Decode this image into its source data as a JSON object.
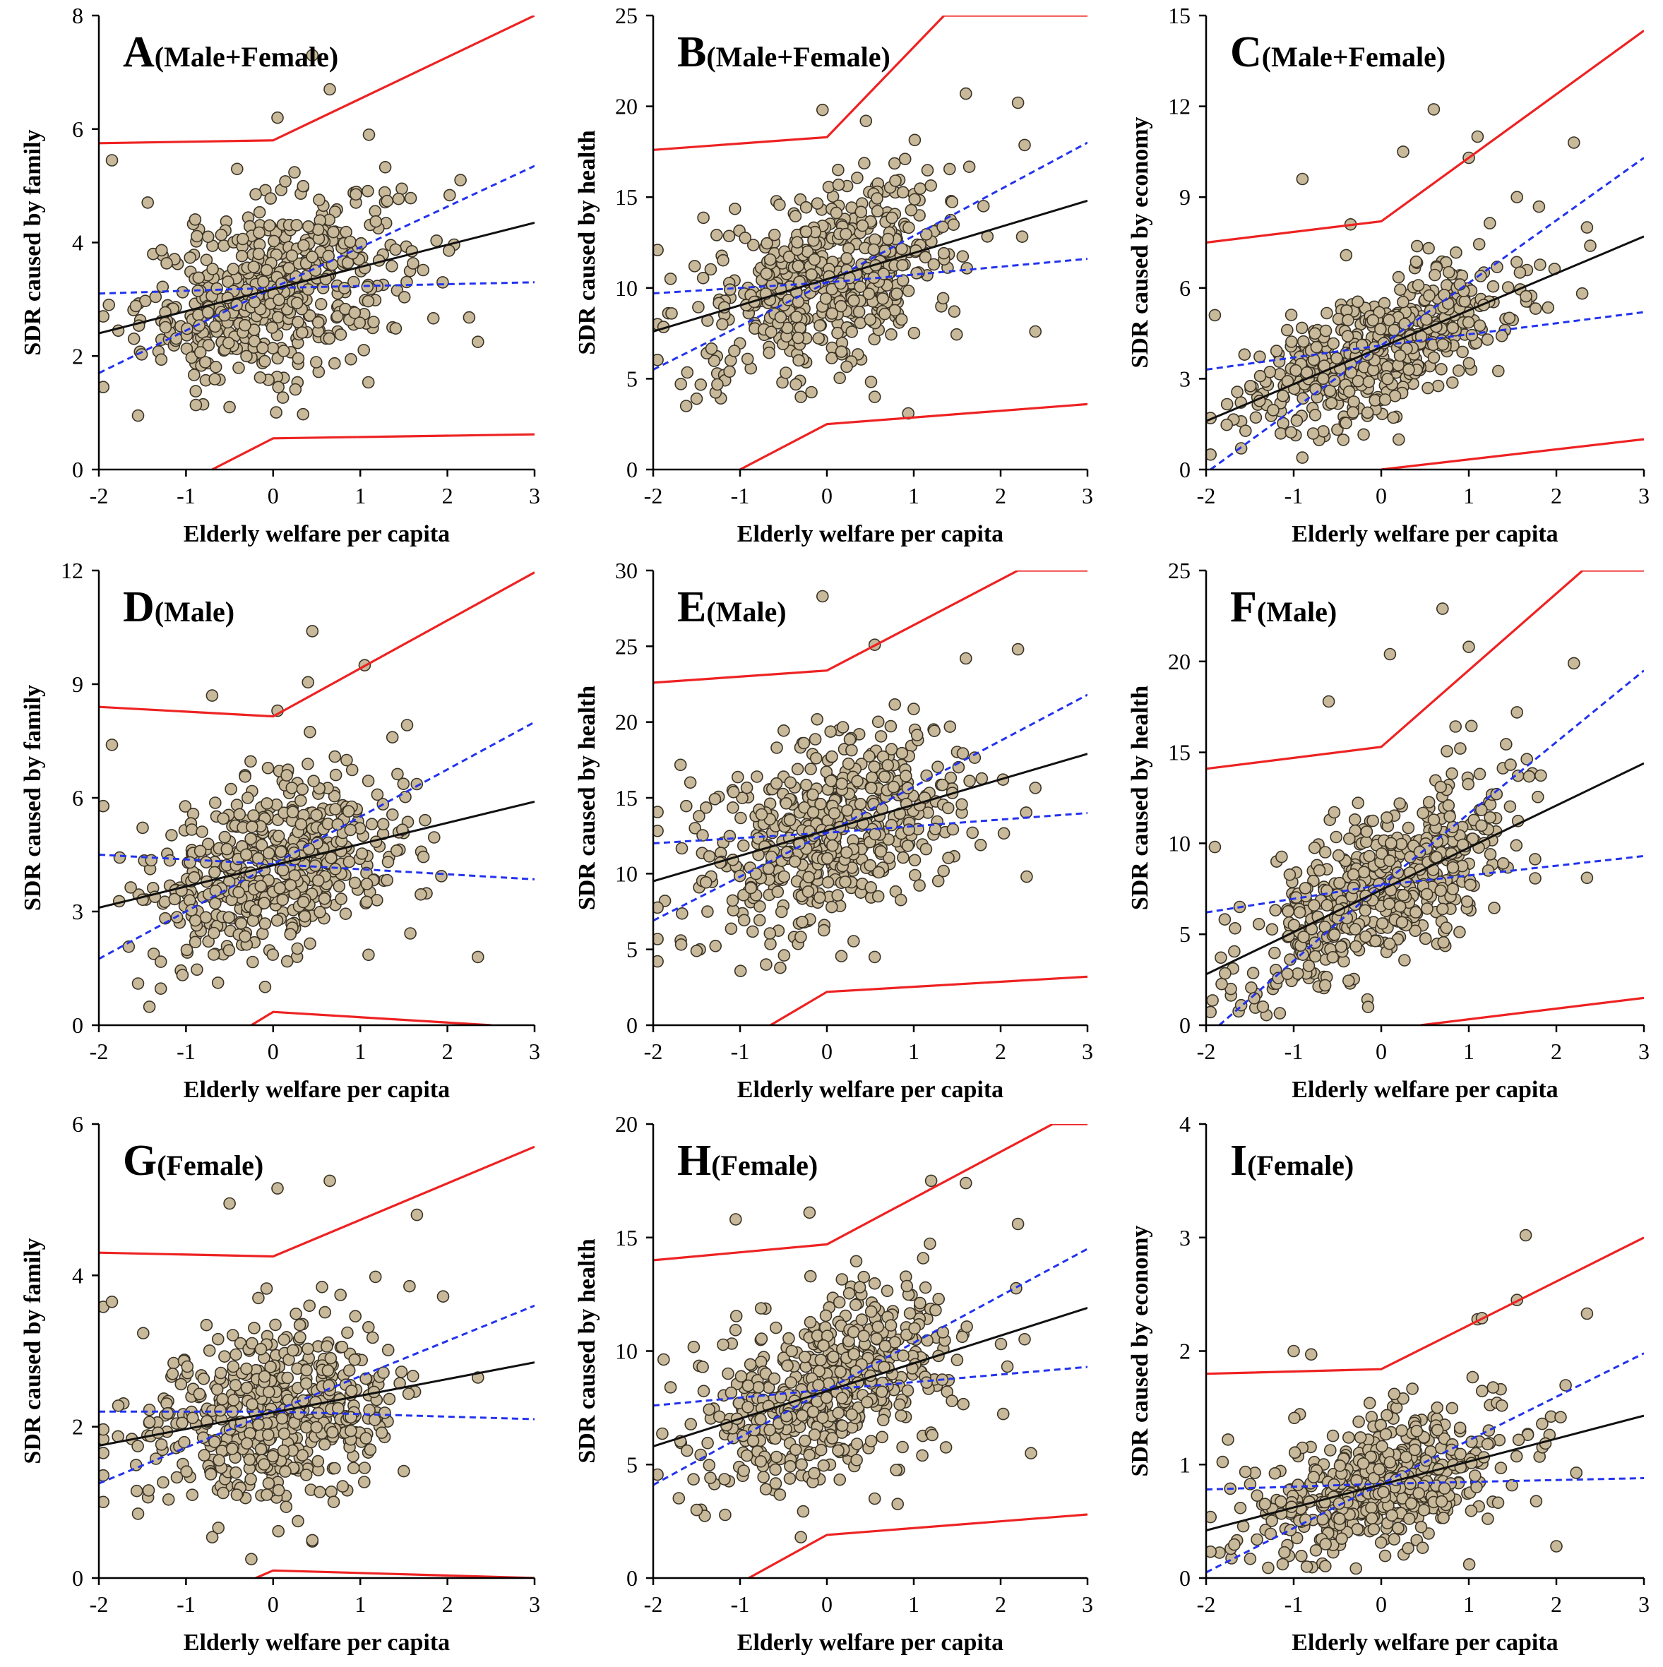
{
  "chart_data": [
    {
      "type": "scatter",
      "title": "A",
      "subtitle": "(Male+Female)",
      "xlabel": "Elderly welfare per capita",
      "ylabel": "SDR caused by family",
      "xlim": [
        -2,
        3
      ],
      "ylim": [
        0,
        8
      ],
      "xticks": [
        -2,
        -1,
        0,
        1,
        2,
        3
      ],
      "yticks": [
        0,
        2,
        4,
        6,
        8
      ],
      "center": [
        0,
        3.2
      ],
      "spread": [
        0.75,
        0.9
      ],
      "fit": {
        "x": [
          -2,
          3
        ],
        "y": [
          2.4,
          4.35
        ]
      },
      "ci": [
        {
          "x": [
            -2,
            0,
            3
          ],
          "y": [
            3.1,
            3.2,
            3.3
          ]
        },
        {
          "x": [
            -2,
            0,
            3
          ],
          "y": [
            1.7,
            3.2,
            5.35
          ]
        }
      ],
      "pi": [
        {
          "x": [
            -2,
            0,
            3
          ],
          "y": [
            5.75,
            5.8,
            8.0
          ]
        },
        {
          "x": [
            -0.7,
            0,
            3
          ],
          "y": [
            0,
            0.55,
            0.62
          ]
        }
      ],
      "points": [
        [
          -1.85,
          5.45
        ],
        [
          -1.55,
          0.95
        ],
        [
          0.45,
          7.3
        ],
        [
          0.05,
          6.2
        ],
        [
          0.65,
          6.7
        ],
        [
          2.35,
          2.25
        ],
        [
          2.15,
          5.1
        ],
        [
          -0.2,
          4.85
        ],
        [
          1.1,
          5.9
        ],
        [
          -0.5,
          1.1
        ]
      ]
    },
    {
      "type": "scatter",
      "title": "B",
      "subtitle": "(Male+Female)",
      "xlabel": "Elderly welfare per capita",
      "ylabel": "SDR caused by health",
      "xlim": [
        -2,
        3
      ],
      "ylim": [
        0,
        25
      ],
      "xticks": [
        -2,
        -1,
        0,
        1,
        2,
        3
      ],
      "yticks": [
        0,
        5,
        10,
        15,
        20,
        25
      ],
      "center": [
        0,
        10.2
      ],
      "spread": [
        0.75,
        2.9
      ],
      "fit": {
        "x": [
          -2,
          3
        ],
        "y": [
          7.6,
          14.8
        ]
      },
      "ci": [
        {
          "x": [
            -2,
            0,
            3
          ],
          "y": [
            9.7,
            10.3,
            11.6
          ]
        },
        {
          "x": [
            -2,
            0,
            3
          ],
          "y": [
            5.5,
            10.3,
            18.0
          ]
        }
      ],
      "pi": [
        {
          "x": [
            -2,
            0,
            1.35,
            3
          ],
          "y": [
            17.6,
            18.3,
            25,
            25
          ]
        },
        {
          "x": [
            -1.0,
            0,
            3
          ],
          "y": [
            0,
            2.5,
            3.6
          ]
        }
      ],
      "points": [
        [
          -1.8,
          10.5
        ],
        [
          -0.05,
          19.8
        ],
        [
          1.6,
          20.7
        ],
        [
          2.2,
          20.2
        ],
        [
          -1.5,
          3.9
        ],
        [
          0.55,
          4.0
        ],
        [
          2.4,
          7.6
        ],
        [
          0.9,
          17.1
        ],
        [
          -0.3,
          4.0
        ]
      ]
    },
    {
      "type": "scatter",
      "title": "C",
      "subtitle": "(Male+Female)",
      "xlabel": "Elderly welfare per capita",
      "ylabel": "SDR caused by economy",
      "xlim": [
        -2,
        3
      ],
      "ylim": [
        0,
        15
      ],
      "xticks": [
        -2,
        -1,
        0,
        1,
        2,
        3
      ],
      "yticks": [
        0,
        3,
        6,
        9,
        12,
        15
      ],
      "center": [
        0,
        3.8
      ],
      "spread": [
        0.75,
        1.2
      ],
      "fit": {
        "x": [
          -2,
          3
        ],
        "y": [
          1.6,
          7.7
        ]
      },
      "ci": [
        {
          "x": [
            -2,
            0,
            3
          ],
          "y": [
            3.3,
            4.1,
            5.2
          ]
        },
        {
          "x": [
            -1.95,
            0,
            3
          ],
          "y": [
            0,
            4.1,
            10.3
          ]
        }
      ],
      "pi": [
        {
          "x": [
            -2,
            0,
            3
          ],
          "y": [
            7.5,
            8.2,
            14.5
          ]
        },
        {
          "x": [
            0,
            3
          ],
          "y": [
            0,
            1.0
          ]
        }
      ],
      "points": [
        [
          0.6,
          11.9
        ],
        [
          1.0,
          10.3
        ],
        [
          1.1,
          11.0
        ],
        [
          0.25,
          10.5
        ],
        [
          -0.9,
          9.6
        ],
        [
          2.2,
          10.8
        ],
        [
          -0.35,
          8.1
        ],
        [
          -1.9,
          5.1
        ],
        [
          1.55,
          9.0
        ],
        [
          2.35,
          8.0
        ],
        [
          -1.6,
          0.7
        ]
      ]
    },
    {
      "type": "scatter",
      "title": "D",
      "subtitle": "(Male)",
      "xlabel": "Elderly welfare per capita",
      "ylabel": "SDR caused by family",
      "xlim": [
        -2,
        3
      ],
      "ylim": [
        0,
        12
      ],
      "xticks": [
        -2,
        -1,
        0,
        1,
        2,
        3
      ],
      "yticks": [
        0,
        3,
        6,
        9,
        12
      ],
      "center": [
        0,
        4.3
      ],
      "spread": [
        0.75,
        1.45
      ],
      "fit": {
        "x": [
          -2,
          3
        ],
        "y": [
          3.1,
          5.9
        ]
      },
      "ci": [
        {
          "x": [
            -2,
            0,
            3
          ],
          "y": [
            4.5,
            4.25,
            3.85
          ]
        },
        {
          "x": [
            -2,
            0,
            3
          ],
          "y": [
            1.75,
            4.25,
            8.0
          ]
        }
      ],
      "pi": [
        {
          "x": [
            -2,
            0,
            3
          ],
          "y": [
            8.4,
            8.15,
            11.95
          ]
        },
        {
          "x": [
            -0.25,
            0,
            2.5
          ],
          "y": [
            0,
            0.35,
            0
          ]
        }
      ],
      "points": [
        [
          0.45,
          10.4
        ],
        [
          0.4,
          9.05
        ],
        [
          1.05,
          9.5
        ],
        [
          -0.7,
          8.7
        ],
        [
          -1.85,
          7.4
        ],
        [
          2.35,
          1.8
        ],
        [
          -1.55,
          1.1
        ],
        [
          0.05,
          8.3
        ]
      ]
    },
    {
      "type": "scatter",
      "title": "E",
      "subtitle": "(Male)",
      "xlabel": "Elderly welfare per capita",
      "ylabel": "SDR caused by health",
      "xlim": [
        -2,
        3
      ],
      "ylim": [
        0,
        30
      ],
      "xticks": [
        -2,
        -1,
        0,
        1,
        2,
        3
      ],
      "yticks": [
        0,
        5,
        10,
        15,
        20,
        25,
        30
      ],
      "center": [
        0,
        12.6
      ],
      "spread": [
        0.75,
        3.6
      ],
      "fit": {
        "x": [
          -2,
          3
        ],
        "y": [
          9.5,
          17.9
        ]
      },
      "ci": [
        {
          "x": [
            -2,
            0,
            3
          ],
          "y": [
            12.0,
            12.7,
            14.0
          ]
        },
        {
          "x": [
            -2,
            0,
            3
          ],
          "y": [
            6.9,
            12.7,
            21.8
          ]
        }
      ],
      "pi": [
        {
          "x": [
            -2,
            0,
            2.2,
            3
          ],
          "y": [
            22.6,
            23.4,
            30,
            30
          ]
        },
        {
          "x": [
            -0.65,
            0,
            3
          ],
          "y": [
            0,
            2.2,
            3.2
          ]
        }
      ],
      "points": [
        [
          -0.05,
          28.3
        ],
        [
          0.55,
          25.1
        ],
        [
          2.2,
          24.8
        ],
        [
          1.6,
          24.2
        ],
        [
          -1.5,
          4.9
        ],
        [
          0.55,
          4.5
        ],
        [
          2.3,
          9.8
        ],
        [
          -0.7,
          4.0
        ]
      ]
    },
    {
      "type": "scatter",
      "title": "F",
      "subtitle": "(Male)",
      "xlabel": "Elderly welfare per capita",
      "ylabel": "SDR caused by health",
      "xlim": [
        -2,
        3
      ],
      "ylim": [
        0,
        25
      ],
      "xticks": [
        -2,
        -1,
        0,
        1,
        2,
        3
      ],
      "yticks": [
        0,
        5,
        10,
        15,
        20,
        25
      ],
      "center": [
        0,
        7.3
      ],
      "spread": [
        0.75,
        2.6
      ],
      "fit": {
        "x": [
          -2,
          3
        ],
        "y": [
          2.8,
          14.4
        ]
      },
      "ci": [
        {
          "x": [
            -2,
            0,
            3
          ],
          "y": [
            6.2,
            7.7,
            9.3
          ]
        },
        {
          "x": [
            -1.85,
            0,
            3
          ],
          "y": [
            0,
            7.7,
            19.5
          ]
        }
      ],
      "pi": [
        {
          "x": [
            -2,
            0,
            2.3,
            3
          ],
          "y": [
            14.1,
            15.3,
            25,
            25
          ]
        },
        {
          "x": [
            0.45,
            3
          ],
          "y": [
            0,
            1.5
          ]
        }
      ],
      "points": [
        [
          0.7,
          22.9
        ],
        [
          1.0,
          20.8
        ],
        [
          0.1,
          20.4
        ],
        [
          2.2,
          19.9
        ],
        [
          -0.6,
          17.8
        ],
        [
          -1.9,
          9.8
        ],
        [
          1.55,
          17.2
        ],
        [
          -0.15,
          1.0
        ],
        [
          2.35,
          8.1
        ],
        [
          -1.6,
          1.1
        ]
      ]
    },
    {
      "type": "scatter",
      "title": "G",
      "subtitle": "(Female)",
      "xlabel": "Elderly welfare per capita",
      "ylabel": "SDR caused by family",
      "xlim": [
        -2,
        3
      ],
      "ylim": [
        0,
        6
      ],
      "xticks": [
        -2,
        -1,
        0,
        1,
        2,
        3
      ],
      "yticks": [
        0,
        2,
        4,
        6
      ],
      "center": [
        0,
        2.2
      ],
      "spread": [
        0.75,
        0.7
      ],
      "fit": {
        "x": [
          -2,
          3
        ],
        "y": [
          1.75,
          2.85
        ]
      },
      "ci": [
        {
          "x": [
            -2,
            0,
            3
          ],
          "y": [
            2.2,
            2.2,
            2.1
          ]
        },
        {
          "x": [
            -2,
            0,
            3
          ],
          "y": [
            1.25,
            2.2,
            3.6
          ]
        }
      ],
      "pi": [
        {
          "x": [
            -2,
            0,
            3
          ],
          "y": [
            4.3,
            4.25,
            5.7
          ]
        },
        {
          "x": [
            -0.2,
            0,
            3
          ],
          "y": [
            0,
            0.1,
            0
          ]
        }
      ],
      "points": [
        [
          0.65,
          5.25
        ],
        [
          0.05,
          5.15
        ],
        [
          -0.5,
          4.95
        ],
        [
          1.65,
          4.8
        ],
        [
          -1.85,
          3.65
        ],
        [
          2.35,
          2.65
        ],
        [
          -0.25,
          0.25
        ],
        [
          -1.55,
          0.85
        ],
        [
          0.45,
          0.5
        ]
      ]
    },
    {
      "type": "scatter",
      "title": "H",
      "subtitle": "(Female)",
      "xlabel": "Elderly welfare per capita",
      "ylabel": "SDR caused by health",
      "xlim": [
        -2,
        3
      ],
      "ylim": [
        0,
        20
      ],
      "xticks": [
        -2,
        -1,
        0,
        1,
        2,
        3
      ],
      "yticks": [
        0,
        5,
        10,
        15,
        20
      ],
      "center": [
        0,
        8.2
      ],
      "spread": [
        0.75,
        2.4
      ],
      "fit": {
        "x": [
          -2,
          3
        ],
        "y": [
          5.8,
          11.9
        ]
      },
      "ci": [
        {
          "x": [
            -2,
            0,
            3
          ],
          "y": [
            7.6,
            8.3,
            9.3
          ]
        },
        {
          "x": [
            -2,
            0,
            3
          ],
          "y": [
            4.1,
            8.3,
            14.5
          ]
        }
      ],
      "pi": [
        {
          "x": [
            -2,
            0,
            2.6,
            3
          ],
          "y": [
            14.0,
            14.7,
            20,
            20
          ]
        },
        {
          "x": [
            -0.9,
            0,
            3
          ],
          "y": [
            0,
            1.9,
            2.8
          ]
        }
      ],
      "points": [
        [
          1.2,
          17.5
        ],
        [
          1.6,
          17.4
        ],
        [
          -0.2,
          16.1
        ],
        [
          -1.05,
          15.8
        ],
        [
          2.2,
          15.6
        ],
        [
          -1.8,
          8.4
        ],
        [
          -1.5,
          3.0
        ],
        [
          -0.3,
          1.8
        ],
        [
          2.35,
          5.5
        ],
        [
          0.55,
          3.5
        ]
      ]
    },
    {
      "type": "scatter",
      "title": "I",
      "subtitle": "(Female)",
      "xlabel": "Elderly welfare per capita",
      "ylabel": "SDR caused by economy",
      "xlim": [
        -2,
        3
      ],
      "ylim": [
        0,
        4
      ],
      "xticks": [
        -2,
        -1,
        0,
        1,
        2,
        3
      ],
      "yticks": [
        0,
        1,
        2,
        3,
        4
      ],
      "center": [
        0,
        0.8
      ],
      "spread": [
        0.75,
        0.33
      ],
      "fit": {
        "x": [
          -2,
          3
        ],
        "y": [
          0.42,
          1.43
        ]
      },
      "ci": [
        {
          "x": [
            -2,
            0,
            3
          ],
          "y": [
            0.78,
            0.83,
            0.88
          ]
        },
        {
          "x": [
            -2,
            0,
            3
          ],
          "y": [
            0.05,
            0.83,
            1.98
          ]
        }
      ],
      "pi": [
        {
          "x": [
            -2,
            0,
            3
          ],
          "y": [
            1.8,
            1.84,
            3.0
          ]
        },
        {
          "x": [],
          "y": []
        }
      ],
      "points": [
        [
          1.65,
          3.02
        ],
        [
          1.55,
          2.45
        ],
        [
          2.35,
          2.33
        ],
        [
          1.1,
          2.28
        ],
        [
          1.15,
          2.29
        ],
        [
          -1.0,
          2.0
        ],
        [
          -0.8,
          1.97
        ],
        [
          -1.75,
          1.22
        ],
        [
          2.0,
          0.28
        ],
        [
          -0.85,
          0.1
        ]
      ]
    }
  ]
}
